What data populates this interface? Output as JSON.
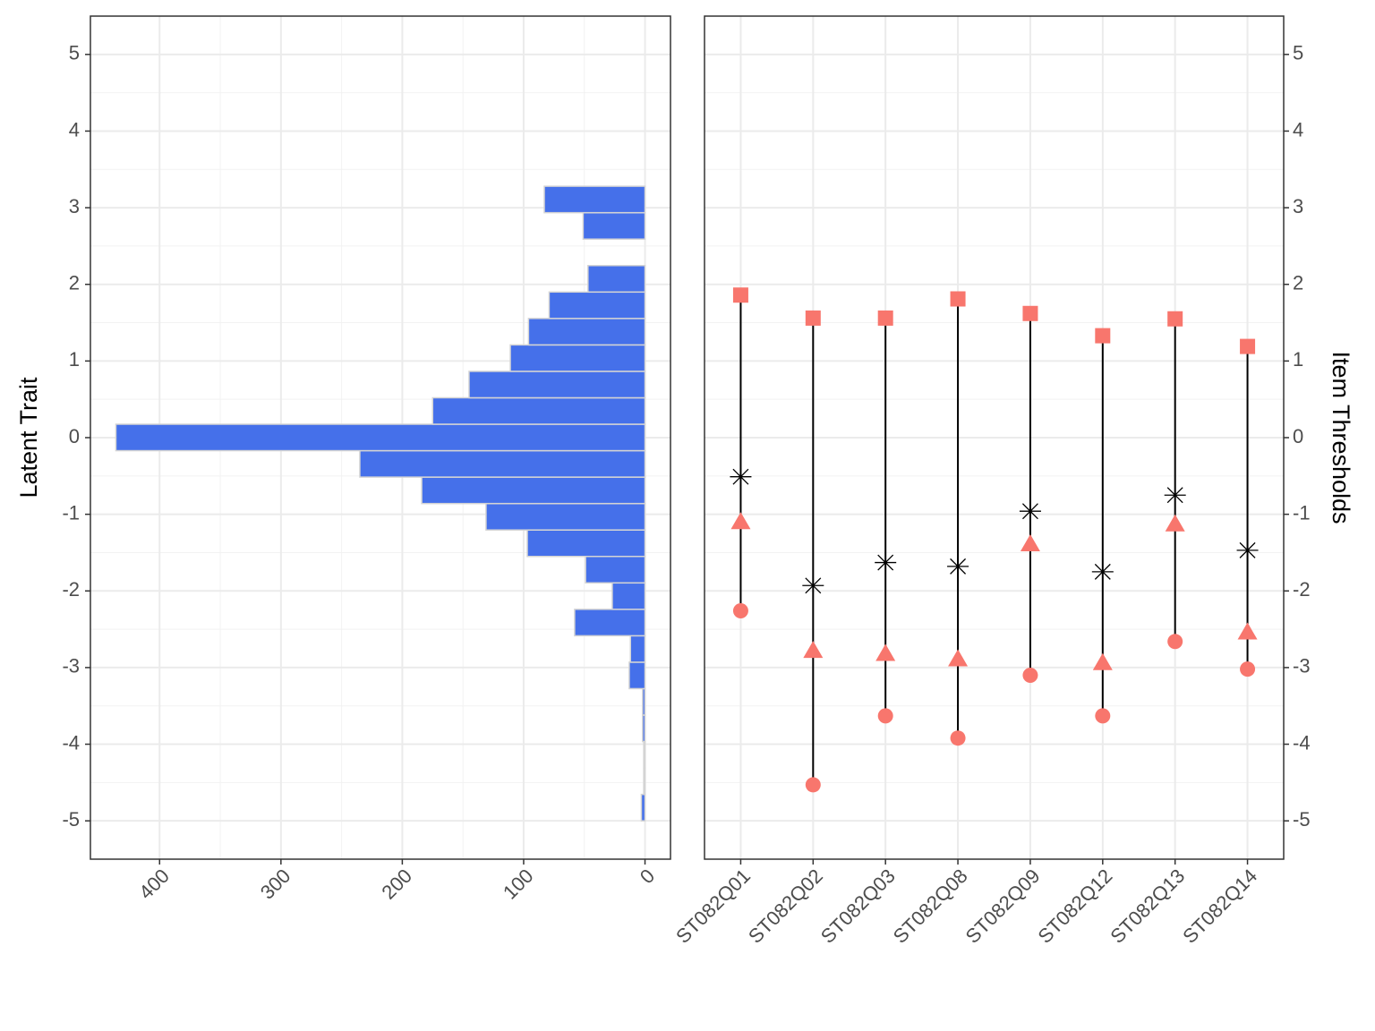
{
  "chart_data": [
    {
      "type": "histogram",
      "y_label": "Latent Trait",
      "orientation": "horizontal",
      "x_reversed": true,
      "bins": [
        -5,
        -4.655,
        -4.31,
        -3.965,
        -3.62,
        -3.275,
        -2.93,
        -2.585,
        -2.24,
        -1.895,
        -1.55,
        -1.205,
        -0.86,
        -0.515,
        -0.17,
        0.175,
        0.52,
        0.865,
        1.21,
        1.555,
        1.9,
        2.245,
        2.59,
        2.935,
        3.28
      ],
      "values": [
        3,
        1,
        1,
        2,
        2,
        13,
        12,
        58,
        27,
        49,
        97,
        131,
        184,
        235,
        436,
        175,
        145,
        111,
        96,
        79,
        47,
        0,
        51,
        83
      ],
      "color": "#4570ea",
      "edge_color": "#d4d4d4",
      "xlim": [
        457,
        -21
      ],
      "xticks": [
        0,
        100,
        200,
        300,
        400
      ],
      "xminor_ticks": [
        50,
        150,
        250,
        350
      ],
      "ylim": [
        -5.5,
        5.5
      ],
      "yticks": [
        -5,
        -4,
        -3,
        -2,
        -1,
        0,
        1,
        2,
        3,
        4,
        5
      ],
      "yminor_ticks": [
        -4.5,
        -3.5,
        -2.5,
        -1.5,
        -0.5,
        0.5,
        1.5,
        2.5,
        3.5,
        4.5
      ],
      "grid": true
    },
    {
      "type": "threshold",
      "y_label": "Item Thresholds",
      "y_axis_side": "right",
      "categories": [
        "ST082Q01",
        "ST082Q02",
        "ST082Q03",
        "ST082Q08",
        "ST082Q09",
        "ST082Q12",
        "ST082Q13",
        "ST082Q14"
      ],
      "series": [
        {
          "shape": "circle",
          "color": "#F8766D",
          "values": [
            -2.26,
            -4.53,
            -3.63,
            -3.92,
            -3.1,
            -3.63,
            -2.66,
            -3.02
          ]
        },
        {
          "shape": "triangle",
          "color": "#F8766D",
          "values": [
            -1.1,
            -2.78,
            -2.82,
            -2.89,
            -1.39,
            -2.94,
            -1.13,
            -2.54
          ]
        },
        {
          "shape": "square",
          "color": "#F8766D",
          "values": [
            1.86,
            1.56,
            1.56,
            1.81,
            1.62,
            1.33,
            1.55,
            1.19
          ]
        },
        {
          "shape": "asterisk",
          "color": "#000000",
          "values": [
            -0.51,
            -1.93,
            -1.63,
            -1.68,
            -0.96,
            -1.75,
            -0.75,
            -1.47
          ]
        }
      ],
      "ylim": [
        -5.5,
        5.5
      ],
      "yticks": [
        -5,
        -4,
        -3,
        -2,
        -1,
        0,
        1,
        2,
        3,
        4,
        5
      ],
      "yminor_ticks": [
        -4.5,
        -3.5,
        -2.5,
        -1.5,
        -0.5,
        0.5,
        1.5,
        2.5,
        3.5,
        4.5
      ],
      "grid": true
    }
  ]
}
